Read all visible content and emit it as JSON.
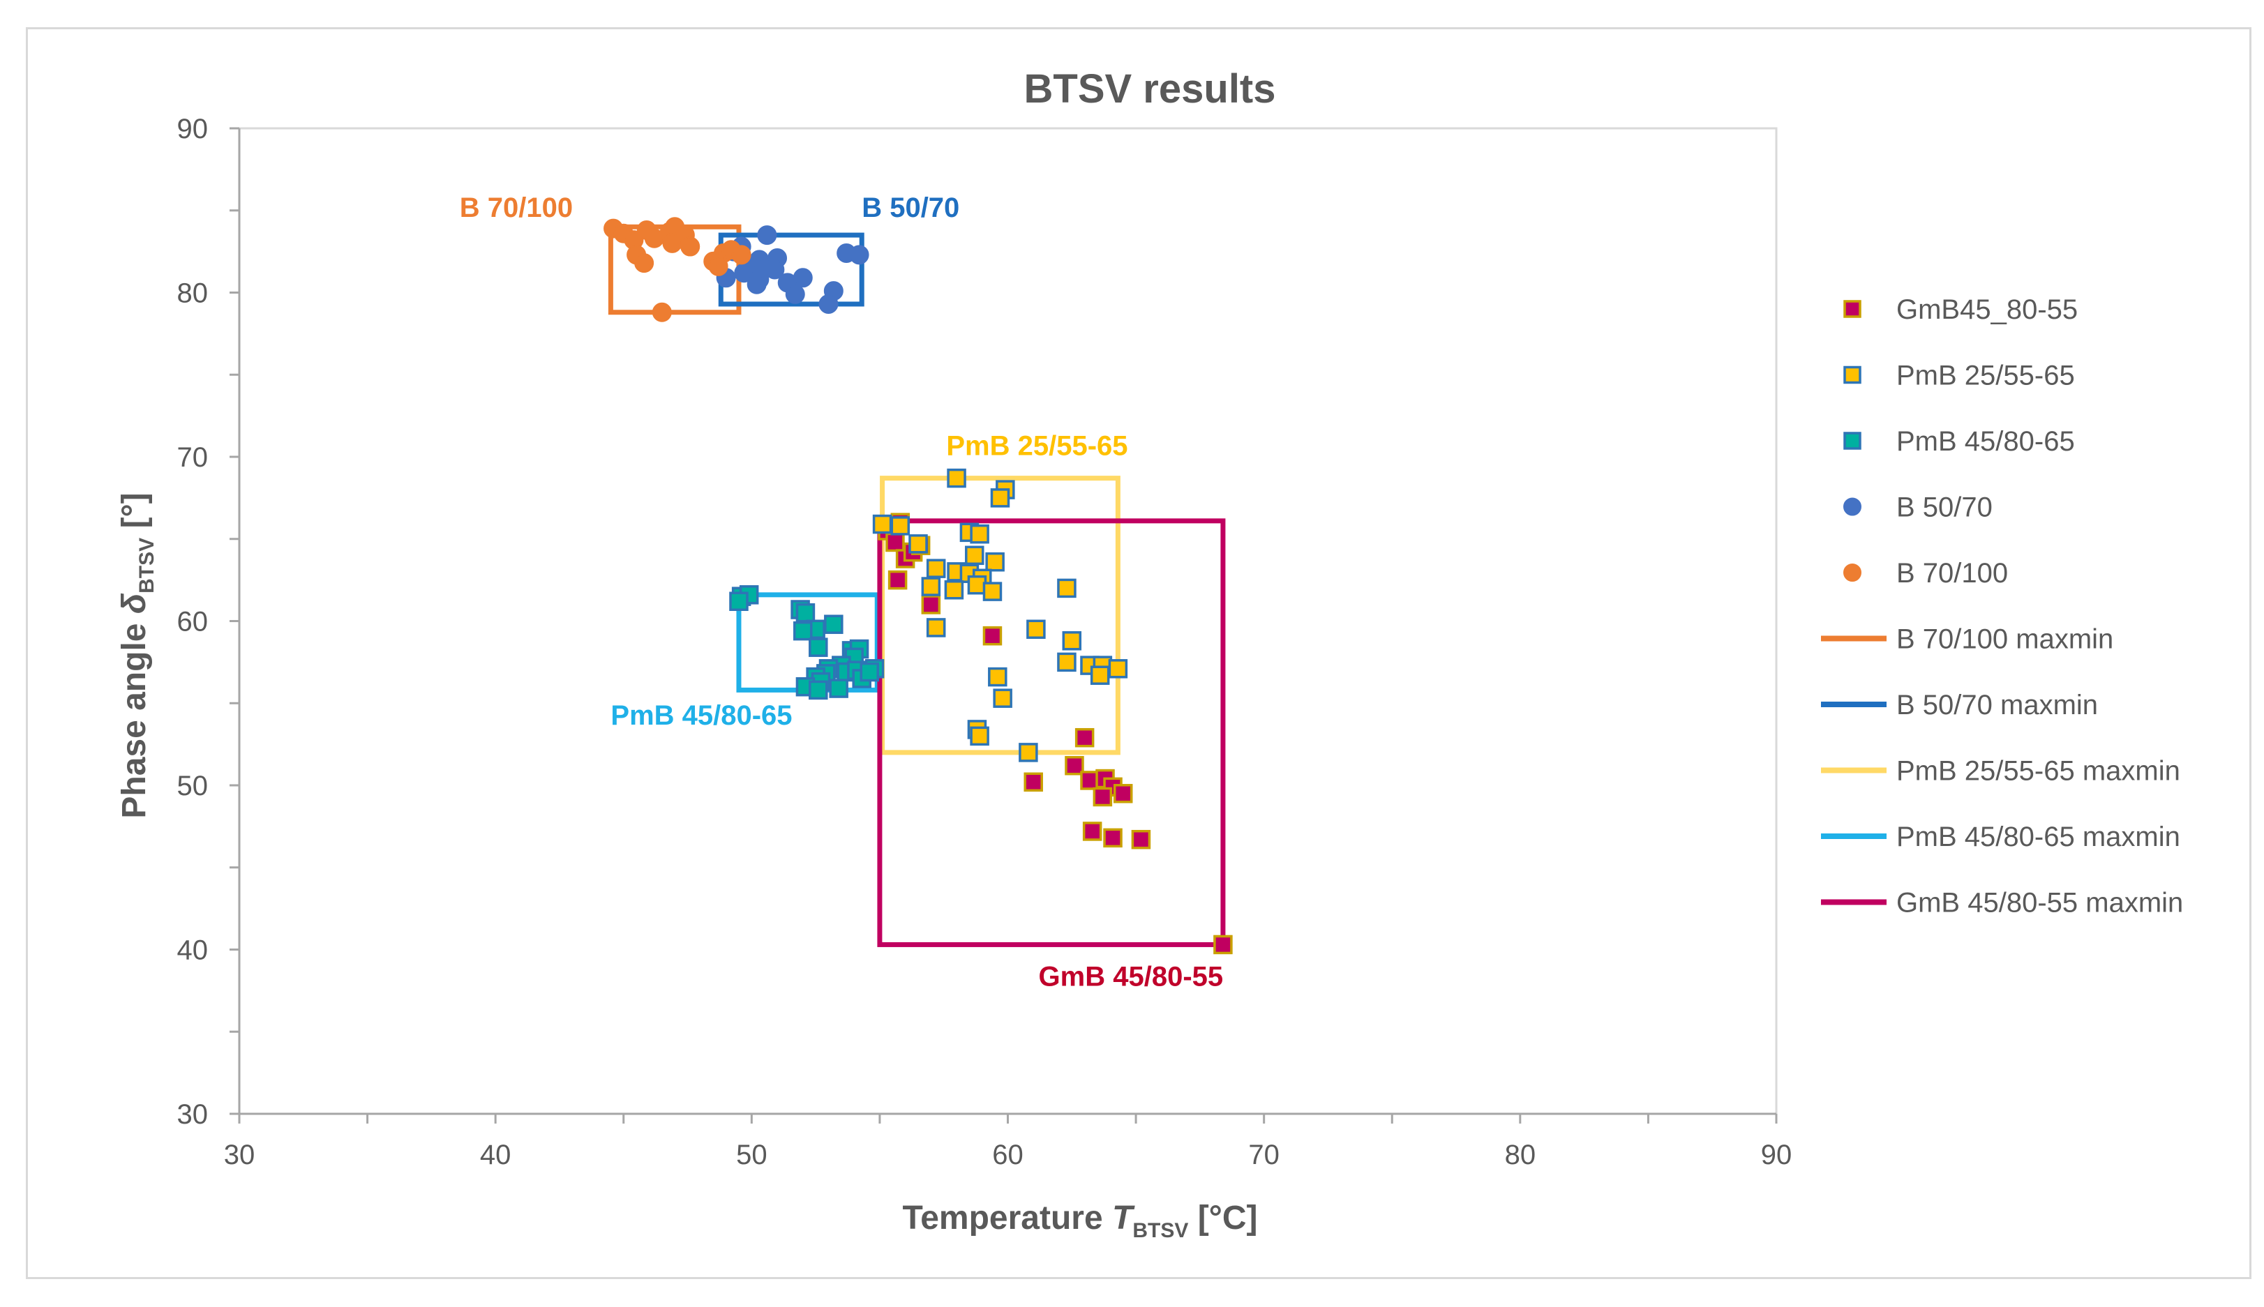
{
  "chart_data": {
    "type": "scatter",
    "title": "BTSV results",
    "xlabel": {
      "prefix": "Temperature ",
      "symbol": "T",
      "sub": "BTSV",
      "unit": " [°C]"
    },
    "ylabel": {
      "prefix": "Phase angle ",
      "symbol": "δ",
      "sub": "BTSV",
      "unit": " [°]"
    },
    "xlim": [
      30,
      90
    ],
    "ylim": [
      30,
      90
    ],
    "xticks": [
      30,
      40,
      50,
      60,
      70,
      80,
      90
    ],
    "yticks": [
      30,
      40,
      50,
      60,
      70,
      80,
      90
    ],
    "grid": false,
    "legend_position": "right",
    "series": [
      {
        "name": "GmB45_80-55",
        "marker": "square",
        "color": "#c00060",
        "edge": "#c9a000",
        "points": [
          [
            55.3,
            65.5
          ],
          [
            55.6,
            64.8
          ],
          [
            55.8,
            66.0
          ],
          [
            56.0,
            63.8
          ],
          [
            56.3,
            64.2
          ],
          [
            56.6,
            64.6
          ],
          [
            55.7,
            62.5
          ],
          [
            57.0,
            61.0
          ],
          [
            59.4,
            59.1
          ],
          [
            63.0,
            52.9
          ],
          [
            62.6,
            51.2
          ],
          [
            63.2,
            50.3
          ],
          [
            63.8,
            50.4
          ],
          [
            64.1,
            49.9
          ],
          [
            63.7,
            49.3
          ],
          [
            64.5,
            49.5
          ],
          [
            63.3,
            47.2
          ],
          [
            64.1,
            46.8
          ],
          [
            65.2,
            46.7
          ],
          [
            61.0,
            50.2
          ],
          [
            68.4,
            40.3
          ]
        ]
      },
      {
        "name": "PmB 25/55-65",
        "marker": "square",
        "color": "#ffc000",
        "edge": "#2e75b6",
        "points": [
          [
            58.0,
            68.7
          ],
          [
            59.9,
            68.0
          ],
          [
            59.7,
            67.5
          ],
          [
            55.1,
            65.9
          ],
          [
            55.8,
            65.8
          ],
          [
            58.5,
            65.4
          ],
          [
            58.9,
            65.3
          ],
          [
            56.5,
            64.7
          ],
          [
            58.7,
            64.0
          ],
          [
            59.5,
            63.6
          ],
          [
            57.2,
            63.2
          ],
          [
            58.0,
            63.0
          ],
          [
            58.5,
            62.9
          ],
          [
            59.0,
            62.6
          ],
          [
            58.8,
            62.2
          ],
          [
            57.0,
            62.1
          ],
          [
            57.9,
            61.9
          ],
          [
            59.4,
            61.8
          ],
          [
            62.3,
            62.0
          ],
          [
            57.2,
            59.6
          ],
          [
            61.1,
            59.5
          ],
          [
            62.5,
            58.8
          ],
          [
            62.3,
            57.5
          ],
          [
            63.2,
            57.3
          ],
          [
            63.7,
            57.3
          ],
          [
            64.3,
            57.1
          ],
          [
            63.6,
            56.7
          ],
          [
            59.6,
            56.6
          ],
          [
            59.8,
            55.3
          ],
          [
            58.8,
            53.4
          ],
          [
            58.9,
            53.0
          ],
          [
            60.8,
            52.0
          ]
        ]
      },
      {
        "name": "PmB 45/80-65",
        "marker": "square",
        "color": "#00b0a0",
        "edge": "#2e75b6",
        "points": [
          [
            49.6,
            61.5
          ],
          [
            49.9,
            61.6
          ],
          [
            49.5,
            61.2
          ],
          [
            51.9,
            60.7
          ],
          [
            52.1,
            60.5
          ],
          [
            52.5,
            59.5
          ],
          [
            53.2,
            59.8
          ],
          [
            52.0,
            59.4
          ],
          [
            52.6,
            58.4
          ],
          [
            53.9,
            58.2
          ],
          [
            54.2,
            58.3
          ],
          [
            54.0,
            57.8
          ],
          [
            53.5,
            57.3
          ],
          [
            53.0,
            57.1
          ],
          [
            52.9,
            56.8
          ],
          [
            52.5,
            56.6
          ],
          [
            52.7,
            56.3
          ],
          [
            53.7,
            56.9
          ],
          [
            54.1,
            57.0
          ],
          [
            54.8,
            57.1
          ],
          [
            54.3,
            56.5
          ],
          [
            52.1,
            56.0
          ],
          [
            52.6,
            55.8
          ],
          [
            53.4,
            55.9
          ],
          [
            54.6,
            56.9
          ]
        ]
      },
      {
        "name": "B 50/70",
        "marker": "circle",
        "color": "#4472c4",
        "edge": "#4472c4",
        "points": [
          [
            50.6,
            83.5
          ],
          [
            49.3,
            82.5
          ],
          [
            49.6,
            82.8
          ],
          [
            49.9,
            81.7
          ],
          [
            50.3,
            82.0
          ],
          [
            51.0,
            82.1
          ],
          [
            53.7,
            82.4
          ],
          [
            54.2,
            82.3
          ],
          [
            49.0,
            80.9
          ],
          [
            49.7,
            81.2
          ],
          [
            50.3,
            80.8
          ],
          [
            50.9,
            81.4
          ],
          [
            51.4,
            80.6
          ],
          [
            52.0,
            80.9
          ],
          [
            50.2,
            80.5
          ],
          [
            51.7,
            79.9
          ],
          [
            53.2,
            80.1
          ],
          [
            53.0,
            79.3
          ],
          [
            50.5,
            81.5
          ]
        ]
      },
      {
        "name": "B 70/100",
        "marker": "circle",
        "color": "#ed7d31",
        "edge": "#ed7d31",
        "points": [
          [
            44.6,
            83.9
          ],
          [
            45.0,
            83.6
          ],
          [
            45.4,
            83.2
          ],
          [
            45.9,
            83.8
          ],
          [
            46.2,
            83.3
          ],
          [
            46.8,
            83.7
          ],
          [
            47.0,
            84.0
          ],
          [
            47.4,
            83.5
          ],
          [
            47.6,
            82.8
          ],
          [
            46.9,
            83.0
          ],
          [
            45.5,
            82.3
          ],
          [
            45.8,
            81.8
          ],
          [
            48.5,
            81.9
          ],
          [
            48.9,
            82.4
          ],
          [
            49.2,
            82.6
          ],
          [
            49.6,
            82.3
          ],
          [
            48.7,
            81.6
          ],
          [
            46.5,
            78.8
          ]
        ]
      }
    ],
    "boxes": [
      {
        "name": "B 70/100 maxmin",
        "color": "#ed7d31",
        "x": [
          44.5,
          49.5
        ],
        "y": [
          78.8,
          84.0
        ]
      },
      {
        "name": "B 50/70 maxmin",
        "color": "#1f6fc0",
        "x": [
          48.8,
          54.3
        ],
        "y": [
          79.3,
          83.5
        ]
      },
      {
        "name": "PmB 25/55-65 maxmin",
        "color": "#ffd966",
        "x": [
          55.1,
          64.3
        ],
        "y": [
          52.0,
          68.7
        ]
      },
      {
        "name": "PmB 45/80-65 maxmin",
        "color": "#1fb0e8",
        "x": [
          49.5,
          54.9
        ],
        "y": [
          55.8,
          61.6
        ]
      },
      {
        "name": "GmB 45/80-55 maxmin",
        "color": "#c00060",
        "x": [
          55.0,
          68.4
        ],
        "y": [
          40.3,
          66.1
        ]
      }
    ],
    "annotations": [
      {
        "text": "B 70/100",
        "color": "#ed7d31",
        "x": 38.6,
        "y": 84.6
      },
      {
        "text": "B 50/70",
        "color": "#1f6fc0",
        "x": 54.3,
        "y": 84.6
      },
      {
        "text": "PmB 25/55-65",
        "color": "#ffc000",
        "x": 57.6,
        "y": 70.1
      },
      {
        "text": "PmB 45/80-65",
        "color": "#1fb0e8",
        "x": 44.5,
        "y": 53.7
      },
      {
        "text": "GmB 45/80-55",
        "color": "#c0002a",
        "x": 61.2,
        "y": 37.8
      }
    ]
  }
}
